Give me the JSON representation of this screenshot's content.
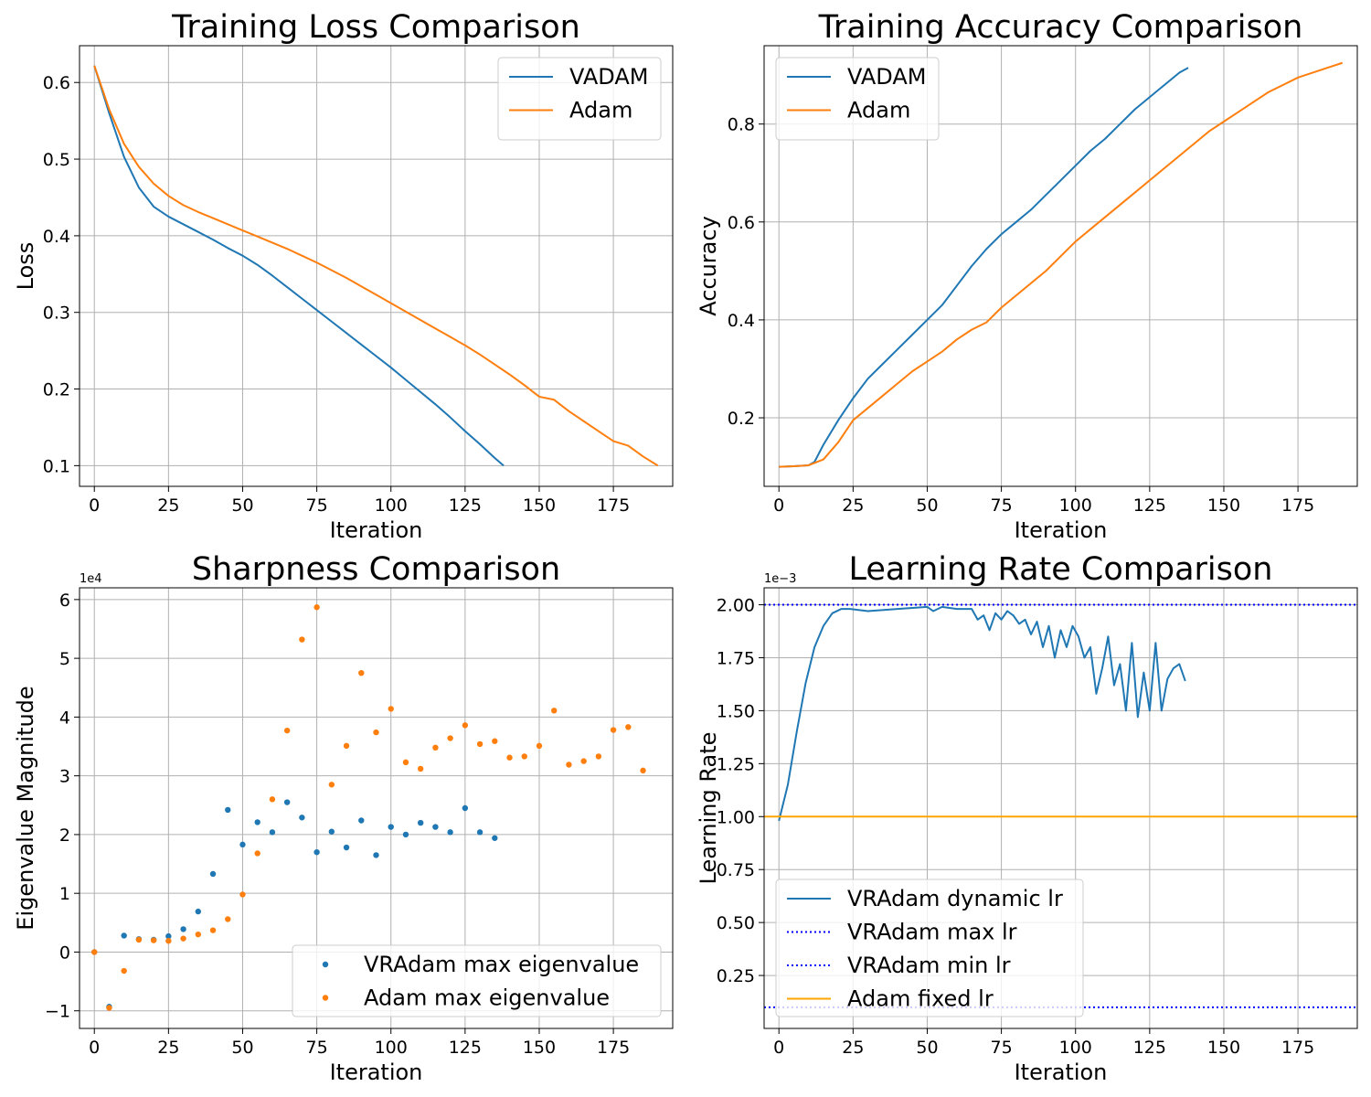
{
  "colors": {
    "blue": "#1f77b4",
    "orange": "#ff7f0e",
    "dotted_blue": "#0000ff",
    "fixed_orange": "#ffa500",
    "grid": "#b0b0b0"
  },
  "chart_data": [
    {
      "type": "line",
      "title": "Training Loss Comparison",
      "xlabel": "Iteration",
      "ylabel": "Loss",
      "xlim": [
        -5,
        195
      ],
      "ylim": [
        0.073,
        0.648
      ],
      "xticks": [
        0,
        25,
        50,
        75,
        100,
        125,
        150,
        175
      ],
      "yticks": [
        0.1,
        0.2,
        0.3,
        0.4,
        0.5,
        0.6
      ],
      "grid": true,
      "legend": "upper right",
      "series": [
        {
          "name": "VADAM",
          "color": "#1f77b4",
          "x": [
            0,
            5,
            10,
            15,
            20,
            25,
            30,
            35,
            40,
            45,
            50,
            55,
            60,
            65,
            70,
            75,
            80,
            85,
            90,
            95,
            100,
            105,
            110,
            115,
            120,
            125,
            130,
            135,
            138
          ],
          "y": [
            0.622,
            0.56,
            0.503,
            0.463,
            0.438,
            0.425,
            0.415,
            0.405,
            0.395,
            0.384,
            0.374,
            0.362,
            0.348,
            0.333,
            0.318,
            0.303,
            0.288,
            0.273,
            0.258,
            0.243,
            0.228,
            0.212,
            0.196,
            0.18,
            0.163,
            0.145,
            0.128,
            0.11,
            0.1
          ]
        },
        {
          "name": "Adam",
          "color": "#ff7f0e",
          "x": [
            0,
            5,
            10,
            15,
            20,
            25,
            30,
            35,
            40,
            45,
            50,
            55,
            60,
            65,
            70,
            75,
            80,
            85,
            90,
            95,
            100,
            105,
            110,
            115,
            120,
            125,
            130,
            135,
            140,
            145,
            150,
            155,
            160,
            165,
            170,
            175,
            180,
            185,
            190
          ],
          "y": [
            0.622,
            0.565,
            0.52,
            0.49,
            0.468,
            0.452,
            0.44,
            0.431,
            0.423,
            0.415,
            0.407,
            0.399,
            0.391,
            0.383,
            0.374,
            0.365,
            0.355,
            0.345,
            0.334,
            0.323,
            0.312,
            0.301,
            0.29,
            0.279,
            0.268,
            0.257,
            0.245,
            0.232,
            0.219,
            0.205,
            0.19,
            0.186,
            0.171,
            0.158,
            0.145,
            0.132,
            0.126,
            0.112,
            0.1
          ]
        }
      ]
    },
    {
      "type": "line",
      "title": "Training Accuracy Comparison",
      "xlabel": "Iteration",
      "ylabel": "Accuracy",
      "xlim": [
        -5,
        195
      ],
      "ylim": [
        0.06,
        0.96
      ],
      "xticks": [
        0,
        25,
        50,
        75,
        100,
        125,
        150,
        175
      ],
      "yticks": [
        0.2,
        0.4,
        0.6,
        0.8
      ],
      "grid": true,
      "legend": "upper left",
      "series": [
        {
          "name": "VADAM",
          "color": "#1f77b4",
          "x": [
            0,
            5,
            10,
            12,
            15,
            20,
            25,
            30,
            35,
            40,
            45,
            50,
            55,
            60,
            65,
            70,
            75,
            80,
            85,
            90,
            95,
            100,
            105,
            110,
            115,
            120,
            125,
            130,
            135,
            138
          ],
          "y": [
            0.1,
            0.101,
            0.103,
            0.11,
            0.145,
            0.195,
            0.24,
            0.28,
            0.31,
            0.34,
            0.37,
            0.4,
            0.43,
            0.47,
            0.51,
            0.545,
            0.575,
            0.6,
            0.625,
            0.655,
            0.685,
            0.715,
            0.745,
            0.77,
            0.8,
            0.83,
            0.855,
            0.88,
            0.905,
            0.915
          ]
        },
        {
          "name": "Adam",
          "color": "#ff7f0e",
          "x": [
            0,
            5,
            10,
            15,
            20,
            25,
            30,
            35,
            40,
            45,
            50,
            55,
            60,
            65,
            70,
            75,
            80,
            85,
            90,
            95,
            100,
            105,
            110,
            115,
            120,
            125,
            130,
            135,
            140,
            145,
            150,
            155,
            160,
            165,
            170,
            175,
            180,
            185,
            190
          ],
          "y": [
            0.1,
            0.101,
            0.103,
            0.115,
            0.15,
            0.195,
            0.22,
            0.245,
            0.27,
            0.295,
            0.315,
            0.335,
            0.36,
            0.38,
            0.395,
            0.425,
            0.45,
            0.475,
            0.5,
            0.53,
            0.56,
            0.585,
            0.61,
            0.635,
            0.66,
            0.685,
            0.71,
            0.735,
            0.76,
            0.785,
            0.805,
            0.825,
            0.845,
            0.865,
            0.88,
            0.895,
            0.905,
            0.915,
            0.925
          ]
        }
      ]
    },
    {
      "type": "scatter",
      "title": "Sharpness Comparison",
      "xlabel": "Iteration",
      "ylabel": "Eigenvalue Magnitude",
      "offset_label": "1e4",
      "xlim": [
        -5,
        195
      ],
      "ylim": [
        -1.3,
        6.2
      ],
      "xticks": [
        0,
        25,
        50,
        75,
        100,
        125,
        150,
        175
      ],
      "yticks": [
        -1,
        0,
        1,
        2,
        3,
        4,
        5,
        6
      ],
      "ytick_labels": [
        "−1",
        "0",
        "1",
        "2",
        "3",
        "4",
        "5",
        "6"
      ],
      "grid": true,
      "legend": "lower right",
      "series": [
        {
          "name": "VRAdam max eigenvalue",
          "color": "#1f77b4",
          "x": [
            0,
            5,
            10,
            15,
            20,
            25,
            30,
            35,
            40,
            45,
            50,
            55,
            60,
            65,
            70,
            75,
            80,
            85,
            90,
            95,
            100,
            105,
            110,
            115,
            120,
            125,
            130,
            135
          ],
          "y": [
            0.0,
            -0.93,
            0.28,
            0.22,
            0.21,
            0.27,
            0.39,
            0.69,
            1.33,
            2.42,
            1.83,
            2.21,
            2.04,
            2.55,
            2.29,
            1.7,
            2.05,
            1.78,
            2.24,
            1.65,
            2.13,
            2.0,
            2.2,
            2.13,
            2.04,
            2.45,
            2.04,
            1.94
          ]
        },
        {
          "name": "Adam max eigenvalue",
          "color": "#ff7f0e",
          "x": [
            0,
            5,
            10,
            15,
            20,
            25,
            30,
            35,
            40,
            45,
            50,
            55,
            60,
            65,
            70,
            75,
            80,
            85,
            90,
            95,
            100,
            105,
            110,
            115,
            120,
            125,
            130,
            135,
            140,
            145,
            150,
            155,
            160,
            165,
            170,
            175,
            180,
            185
          ],
          "y": [
            0.0,
            -0.95,
            -0.32,
            0.21,
            0.2,
            0.19,
            0.23,
            0.3,
            0.37,
            0.56,
            0.98,
            1.68,
            2.6,
            3.77,
            5.32,
            5.87,
            2.85,
            3.51,
            4.75,
            3.74,
            4.14,
            3.23,
            3.12,
            3.48,
            3.64,
            3.86,
            3.54,
            3.59,
            3.31,
            3.33,
            3.51,
            4.11,
            3.19,
            3.25,
            3.33,
            3.78,
            3.83,
            3.09
          ]
        }
      ]
    },
    {
      "type": "line",
      "title": "Learning Rate Comparison",
      "xlabel": "Iteration",
      "ylabel": "Learning Rate",
      "offset_label": "1e−3",
      "xlim": [
        -5,
        195
      ],
      "ylim": [
        0.0,
        2.08
      ],
      "xticks": [
        0,
        25,
        50,
        75,
        100,
        125,
        150,
        175
      ],
      "yticks": [
        0.25,
        0.5,
        0.75,
        1.0,
        1.25,
        1.5,
        1.75,
        2.0
      ],
      "ytick_labels": [
        "0.25",
        "0.50",
        "0.75",
        "1.00",
        "1.25",
        "1.50",
        "1.75",
        "2.00"
      ],
      "grid": true,
      "legend": "lower left",
      "series": [
        {
          "name": "VRAdam dynamic lr",
          "color": "#1f77b4",
          "style": "solid",
          "x": [
            0,
            3,
            6,
            9,
            12,
            15,
            18,
            21,
            24,
            30,
            40,
            50,
            52,
            55,
            60,
            65,
            67,
            69,
            71,
            73,
            75,
            77,
            79,
            81,
            83,
            85,
            87,
            89,
            91,
            93,
            95,
            97,
            99,
            101,
            103,
            105,
            107,
            109,
            111,
            113,
            115,
            117,
            119,
            121,
            123,
            125,
            127,
            129,
            131,
            133,
            135,
            137
          ],
          "y": [
            0.98,
            1.15,
            1.4,
            1.63,
            1.8,
            1.9,
            1.96,
            1.98,
            1.98,
            1.97,
            1.98,
            1.99,
            1.97,
            1.99,
            1.98,
            1.98,
            1.93,
            1.95,
            1.88,
            1.96,
            1.93,
            1.97,
            1.95,
            1.91,
            1.93,
            1.86,
            1.92,
            1.8,
            1.9,
            1.75,
            1.88,
            1.8,
            1.9,
            1.85,
            1.75,
            1.8,
            1.58,
            1.7,
            1.85,
            1.62,
            1.72,
            1.5,
            1.82,
            1.47,
            1.68,
            1.5,
            1.82,
            1.5,
            1.65,
            1.7,
            1.72,
            1.64
          ]
        },
        {
          "name": "VRAdam max lr",
          "color": "#0000ff",
          "style": "dotted",
          "hline": 2.0
        },
        {
          "name": "VRAdam min lr",
          "color": "#0000ff",
          "style": "dotted",
          "hline": 0.1
        },
        {
          "name": "Adam fixed lr",
          "color": "#ffa500",
          "style": "solid",
          "hline": 1.0
        }
      ]
    }
  ]
}
